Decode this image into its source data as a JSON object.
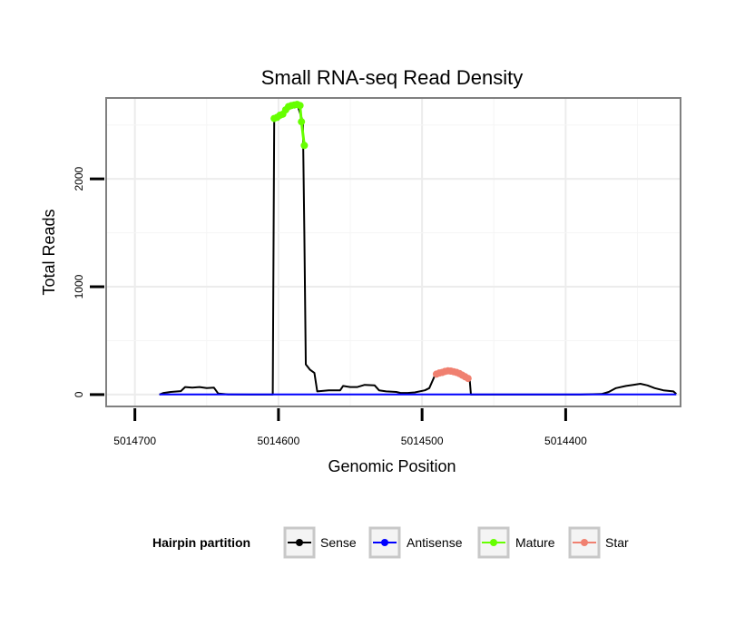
{
  "chart_data": {
    "type": "line",
    "title": "Small RNA-seq Read Density",
    "xlabel": "Genomic Position",
    "ylabel": "Total Reads",
    "xlim": [
      5014720,
      5014320
    ],
    "ylim": [
      -110,
      2750
    ],
    "x_reversed": true,
    "x_ticks": [
      5014700,
      5014600,
      5014500,
      5014400
    ],
    "x_tick_labels": [
      "5014700",
      "5014600",
      "5014500",
      "5014400"
    ],
    "y_ticks": [
      0,
      1000,
      2000
    ],
    "y_tick_labels": [
      "0",
      "1000",
      "2000"
    ],
    "grid": true,
    "legend": {
      "title": "Hairpin partition",
      "position": "bottom",
      "entries": [
        {
          "name": "Sense",
          "color": "#000000"
        },
        {
          "name": "Antisense",
          "color": "#0000ff"
        },
        {
          "name": "Mature",
          "color": "#66ff00"
        },
        {
          "name": "Star",
          "color": "#f08070"
        }
      ]
    },
    "series": [
      {
        "name": "Sense",
        "color": "#000000",
        "marker": false,
        "points": [
          [
            5014683,
            0
          ],
          [
            5014680,
            15
          ],
          [
            5014675,
            25
          ],
          [
            5014668,
            32
          ],
          [
            5014665,
            70
          ],
          [
            5014660,
            65
          ],
          [
            5014655,
            70
          ],
          [
            5014650,
            60
          ],
          [
            5014645,
            65
          ],
          [
            5014642,
            10
          ],
          [
            5014635,
            2
          ],
          [
            5014620,
            0
          ],
          [
            5014604,
            0
          ],
          [
            5014603,
            2560
          ],
          [
            5014598,
            2600
          ],
          [
            5014592,
            2680
          ],
          [
            5014587,
            2690
          ],
          [
            5014583,
            2530
          ],
          [
            5014582,
            1500
          ],
          [
            5014581,
            280
          ],
          [
            5014578,
            230
          ],
          [
            5014575,
            200
          ],
          [
            5014573,
            30
          ],
          [
            5014565,
            40
          ],
          [
            5014557,
            40
          ],
          [
            5014555,
            80
          ],
          [
            5014550,
            70
          ],
          [
            5014545,
            70
          ],
          [
            5014540,
            90
          ],
          [
            5014533,
            85
          ],
          [
            5014530,
            40
          ],
          [
            5014525,
            30
          ],
          [
            5014518,
            25
          ],
          [
            5014515,
            15
          ],
          [
            5014510,
            15
          ],
          [
            5014505,
            20
          ],
          [
            5014498,
            40
          ],
          [
            5014495,
            60
          ],
          [
            5014491,
            180
          ],
          [
            5014488,
            200
          ],
          [
            5014484,
            215
          ],
          [
            5014478,
            220
          ],
          [
            5014474,
            200
          ],
          [
            5014470,
            175
          ],
          [
            5014467,
            160
          ],
          [
            5014466,
            0
          ],
          [
            5014450,
            0
          ],
          [
            5014420,
            0
          ],
          [
            5014390,
            0
          ],
          [
            5014375,
            5
          ],
          [
            5014370,
            25
          ],
          [
            5014365,
            60
          ],
          [
            5014358,
            80
          ],
          [
            5014353,
            90
          ],
          [
            5014348,
            100
          ],
          [
            5014343,
            85
          ],
          [
            5014338,
            60
          ],
          [
            5014332,
            40
          ],
          [
            5014325,
            30
          ],
          [
            5014323,
            5
          ]
        ]
      },
      {
        "name": "Antisense",
        "color": "#0000ff",
        "marker": false,
        "points": [
          [
            5014683,
            2
          ],
          [
            5014323,
            2
          ]
        ]
      },
      {
        "name": "Mature",
        "color": "#66ff00",
        "marker": true,
        "points": [
          [
            5014603,
            2560
          ],
          [
            5014601,
            2570
          ],
          [
            5014599,
            2590
          ],
          [
            5014597,
            2600
          ],
          [
            5014595,
            2640
          ],
          [
            5014593,
            2670
          ],
          [
            5014591,
            2680
          ],
          [
            5014589,
            2685
          ],
          [
            5014587,
            2690
          ],
          [
            5014585,
            2680
          ],
          [
            5014584,
            2530
          ],
          [
            5014582,
            2310
          ]
        ]
      },
      {
        "name": "Star",
        "color": "#f08070",
        "marker": true,
        "points": [
          [
            5014490,
            190
          ],
          [
            5014488,
            200
          ],
          [
            5014486,
            205
          ],
          [
            5014484,
            215
          ],
          [
            5014482,
            220
          ],
          [
            5014480,
            218
          ],
          [
            5014478,
            212
          ],
          [
            5014476,
            205
          ],
          [
            5014474,
            195
          ],
          [
            5014472,
            180
          ],
          [
            5014470,
            165
          ],
          [
            5014468,
            150
          ]
        ]
      }
    ]
  }
}
